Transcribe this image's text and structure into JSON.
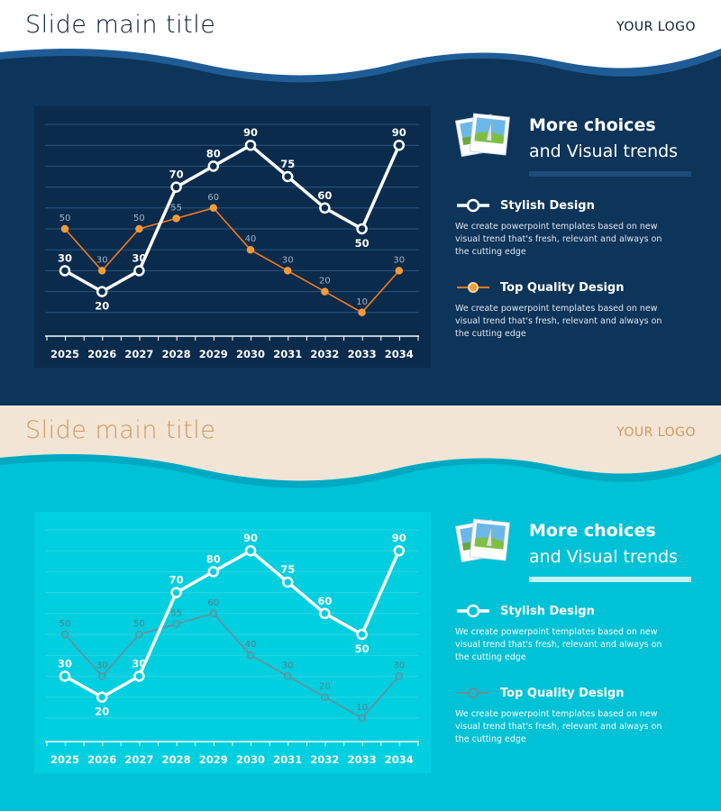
{
  "slides": [
    {
      "variant": "dark",
      "title": "Slide main title",
      "logo": "YOUR LOGO",
      "panel": {
        "heading_line1": "More choices",
        "heading_line2": "and Visual trends",
        "icon": "photo-stack-icon"
      },
      "legend": [
        {
          "label": "Stylish Design",
          "description": "We create powerpoint templates based on new visual trend that's fresh, relevant and always on the cutting edge"
        },
        {
          "label": "Top Quality Design",
          "description": "We create powerpoint templates based on new visual trend that's fresh, relevant and always on the cutting edge"
        }
      ],
      "colors": {
        "header_bg": "#ffffff",
        "body_bg": "#0d3459",
        "wave_accent": "#1f5c95",
        "plot_bg": "#0a2b4c",
        "title": "#0b1b33",
        "series1": "#ffffff",
        "series2": "#f07d1a",
        "label2": "#9fb3c8",
        "text": "#ffffff",
        "rule": "#1d4c78"
      }
    },
    {
      "variant": "light",
      "title": "Slide main title",
      "logo": "YOUR LOGO",
      "panel": {
        "heading_line1": "More choices",
        "heading_line2": "and Visual trends",
        "icon": "photo-stack-icon"
      },
      "legend": [
        {
          "label": "Stylish Design",
          "description": "We create powerpoint templates based on new visual trend that's fresh, relevant and always on the cutting edge"
        },
        {
          "label": "Top Quality Design",
          "description": "We create powerpoint templates based on new visual trend that's fresh, relevant and always on the cutting edge"
        }
      ],
      "colors": {
        "header_bg": "#f2e5d5",
        "body_bg": "#00c2d6",
        "wave_accent": "#00a9c2",
        "plot_bg": "#00cfe0",
        "title": "#d1975c",
        "series1": "#ffffff",
        "series2": "#6b8d96",
        "label2": "#5b7d86",
        "text": "#ffffff",
        "rule": "#c6f3f8"
      }
    }
  ],
  "chart_data": {
    "type": "line",
    "categories": [
      "2025",
      "2026",
      "2027",
      "2028",
      "2029",
      "2030",
      "2031",
      "2032",
      "2033",
      "2034"
    ],
    "series": [
      {
        "values": [
          30,
          20,
          30,
          70,
          80,
          90,
          75,
          60,
          50,
          90
        ]
      },
      {
        "values": [
          50,
          30,
          50,
          55,
          60,
          40,
          30,
          20,
          10,
          30
        ]
      }
    ],
    "ylim": [
      0,
      100
    ],
    "grid": true
  }
}
